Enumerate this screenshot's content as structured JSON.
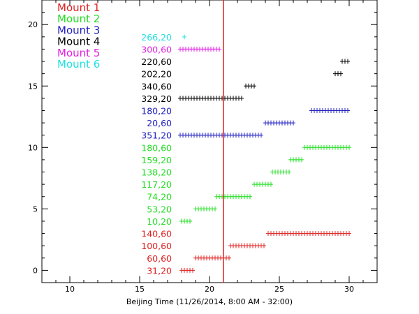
{
  "chart_data": {
    "type": "scatter",
    "title": "",
    "xlabel": "Beijing Time (11/26/2014, 8:00 AM - 32:00)",
    "ylabel": "",
    "xlim": [
      8,
      32
    ],
    "ylim": [
      -1,
      22
    ],
    "xticks": [
      10,
      15,
      20,
      25,
      30
    ],
    "yticks": [
      0,
      5,
      10,
      15,
      20
    ],
    "legend_placement": "top-left",
    "marker": "+",
    "vertical_line": {
      "x": 21,
      "color": "#e02020"
    },
    "legend": [
      {
        "name": "Mount 1",
        "color": "#e02020"
      },
      {
        "name": "Mount 2",
        "color": "#22dd22"
      },
      {
        "name": "Mount 3",
        "color": "#2020c0"
      },
      {
        "name": "Mount 4",
        "color": "#000000"
      },
      {
        "name": "Mount 5",
        "color": "#e020e0"
      },
      {
        "name": "Mount 6",
        "color": "#20e0e0"
      }
    ],
    "rows": [
      {
        "y": 0,
        "label": "31,20",
        "mount": "Mount 1",
        "color": "#e02020",
        "x_start": 18.0,
        "x_end": 18.8
      },
      {
        "y": 1,
        "label": "60,60",
        "mount": "Mount 1",
        "color": "#e02020",
        "x_start": 19.0,
        "x_end": 21.5
      },
      {
        "y": 2,
        "label": "100,60",
        "mount": "Mount 1",
        "color": "#e02020",
        "x_start": 21.5,
        "x_end": 24.0
      },
      {
        "y": 3,
        "label": "140,60",
        "mount": "Mount 1",
        "color": "#e02020",
        "x_start": 24.2,
        "x_end": 30.0
      },
      {
        "y": 4,
        "label": "10,20",
        "mount": "Mount 2",
        "color": "#22dd22",
        "x_start": 18.0,
        "x_end": 18.7
      },
      {
        "y": 5,
        "label": "53,20",
        "mount": "Mount 2",
        "color": "#22dd22",
        "x_start": 19.0,
        "x_end": 20.5
      },
      {
        "y": 6,
        "label": "74,20",
        "mount": "Mount 2",
        "color": "#22dd22",
        "x_start": 20.5,
        "x_end": 23.0
      },
      {
        "y": 7,
        "label": "117,20",
        "mount": "Mount 2",
        "color": "#22dd22",
        "x_start": 23.2,
        "x_end": 24.4
      },
      {
        "y": 8,
        "label": "138,20",
        "mount": "Mount 2",
        "color": "#22dd22",
        "x_start": 24.5,
        "x_end": 25.8
      },
      {
        "y": 9,
        "label": "159,20",
        "mount": "Mount 2",
        "color": "#22dd22",
        "x_start": 25.8,
        "x_end": 26.6
      },
      {
        "y": 10,
        "label": "180,60",
        "mount": "Mount 2",
        "color": "#22dd22",
        "x_start": 26.8,
        "x_end": 30.0
      },
      {
        "y": 11,
        "label": "351,20",
        "mount": "Mount 3",
        "color": "#2020c0",
        "x_start": 17.9,
        "x_end": 23.8
      },
      {
        "y": 12,
        "label": "20,60",
        "mount": "Mount 3",
        "color": "#2020c0",
        "x_start": 24.0,
        "x_end": 26.0
      },
      {
        "y": 13,
        "label": "180,20",
        "mount": "Mount 3",
        "color": "#2020c0",
        "x_start": 27.3,
        "x_end": 30.0
      },
      {
        "y": 14,
        "label": "329,20",
        "mount": "Mount 4",
        "color": "#000000",
        "x_start": 17.9,
        "x_end": 22.4
      },
      {
        "y": 15,
        "label": "340,60",
        "mount": "Mount 4",
        "color": "#000000",
        "x_start": 22.6,
        "x_end": 23.3
      },
      {
        "y": 16,
        "label": "202,20",
        "mount": "Mount 4",
        "color": "#000000",
        "x_start": 29.0,
        "x_end": 29.5
      },
      {
        "y": 17,
        "label": "220,60",
        "mount": "Mount 4",
        "color": "#000000",
        "x_start": 29.5,
        "x_end": 30.0
      },
      {
        "y": 18,
        "label": "300,60",
        "mount": "Mount 5",
        "color": "#e020e0",
        "x_start": 17.9,
        "x_end": 20.8
      },
      {
        "y": 19,
        "label": "266,20",
        "mount": "Mount 6",
        "color": "#20e0e0",
        "x_start": 18.2,
        "x_end": 18.2
      }
    ]
  }
}
